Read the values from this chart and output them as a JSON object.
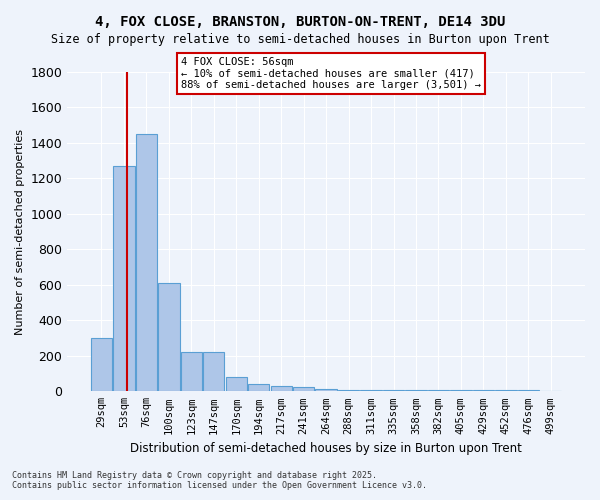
{
  "title": "4, FOX CLOSE, BRANSTON, BURTON-ON-TRENT, DE14 3DU",
  "subtitle": "Size of property relative to semi-detached houses in Burton upon Trent",
  "xlabel": "Distribution of semi-detached houses by size in Burton upon Trent",
  "ylabel": "Number of semi-detached properties",
  "footnote": "Contains HM Land Registry data © Crown copyright and database right 2025.\nContains public sector information licensed under the Open Government Licence v3.0.",
  "bin_labels": [
    "29sqm",
    "53sqm",
    "76sqm",
    "100sqm",
    "123sqm",
    "147sqm",
    "170sqm",
    "194sqm",
    "217sqm",
    "241sqm",
    "264sqm",
    "288sqm",
    "311sqm",
    "335sqm",
    "358sqm",
    "382sqm",
    "405sqm",
    "429sqm",
    "452sqm",
    "476sqm",
    "499sqm"
  ],
  "bar_values": [
    300,
    1270,
    1450,
    610,
    220,
    220,
    80,
    40,
    30,
    25,
    15,
    10,
    5,
    5,
    5,
    5,
    5,
    5,
    5,
    5,
    0
  ],
  "bar_color": "#aec6e8",
  "bar_edge_color": "#5a9fd4",
  "bg_color": "#eef3fb",
  "grid_color": "#ffffff",
  "red_line_x": 1.15,
  "annotation_text": "4 FOX CLOSE: 56sqm\n← 10% of semi-detached houses are smaller (417)\n88% of semi-detached houses are larger (3,501) →",
  "annotation_box_color": "#ffffff",
  "annotation_box_edge": "#cc0000",
  "ylim": [
    0,
    1800
  ],
  "yticks": [
    0,
    200,
    400,
    600,
    800,
    1000,
    1200,
    1400,
    1600,
    1800
  ]
}
